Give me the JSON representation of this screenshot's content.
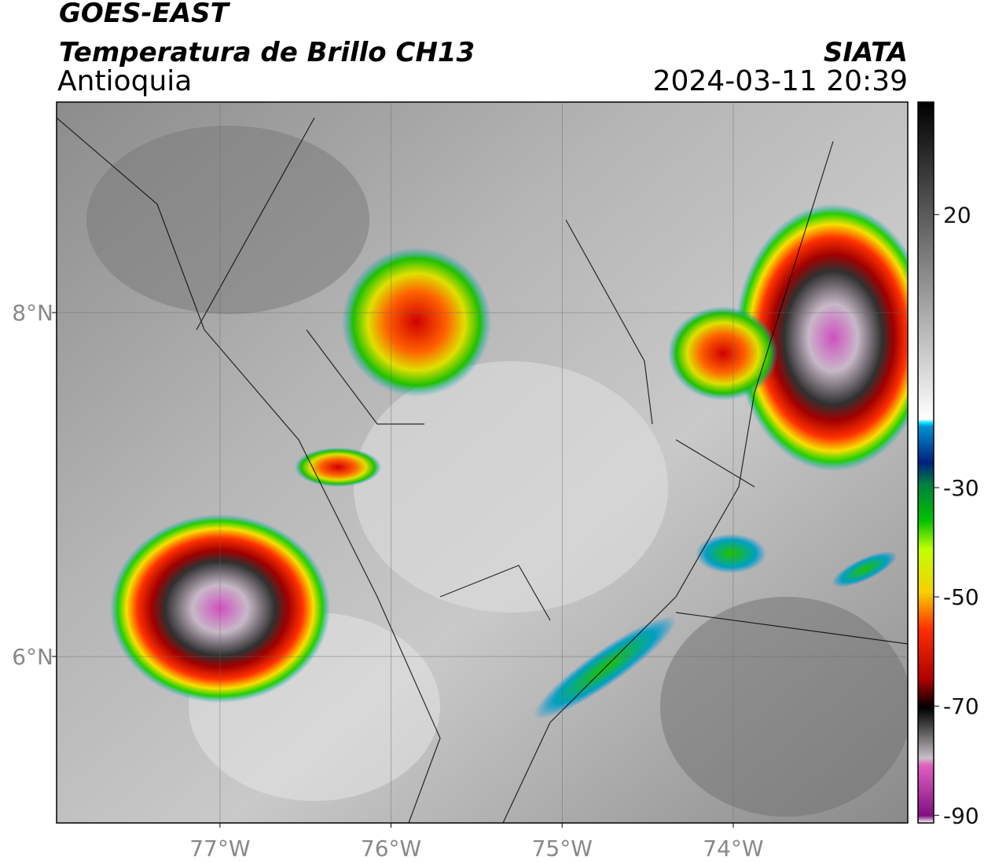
{
  "header": {
    "satellite": "GOES-EAST",
    "product": "Temperatura de Brillo CH13",
    "region": "Antioquia",
    "source": "SIATA",
    "datetime": "2024-03-11 20:39"
  },
  "map": {
    "xlim": [
      -77.955,
      -72.98
    ],
    "ylim": [
      5.032,
      9.224
    ],
    "xticks": [
      {
        "value": -77,
        "label": "77°W"
      },
      {
        "value": -76,
        "label": "76°W"
      },
      {
        "value": -75,
        "label": "75°W"
      },
      {
        "value": -74,
        "label": "74°W"
      }
    ],
    "yticks": [
      {
        "value": 6,
        "label": "6°N"
      },
      {
        "value": 8,
        "label": "8°N"
      }
    ],
    "grid": true
  },
  "colorbar": {
    "lim": [
      -91.4,
      40.6
    ],
    "ticks": [
      20,
      -30,
      -50,
      -70,
      -90
    ]
  }
}
